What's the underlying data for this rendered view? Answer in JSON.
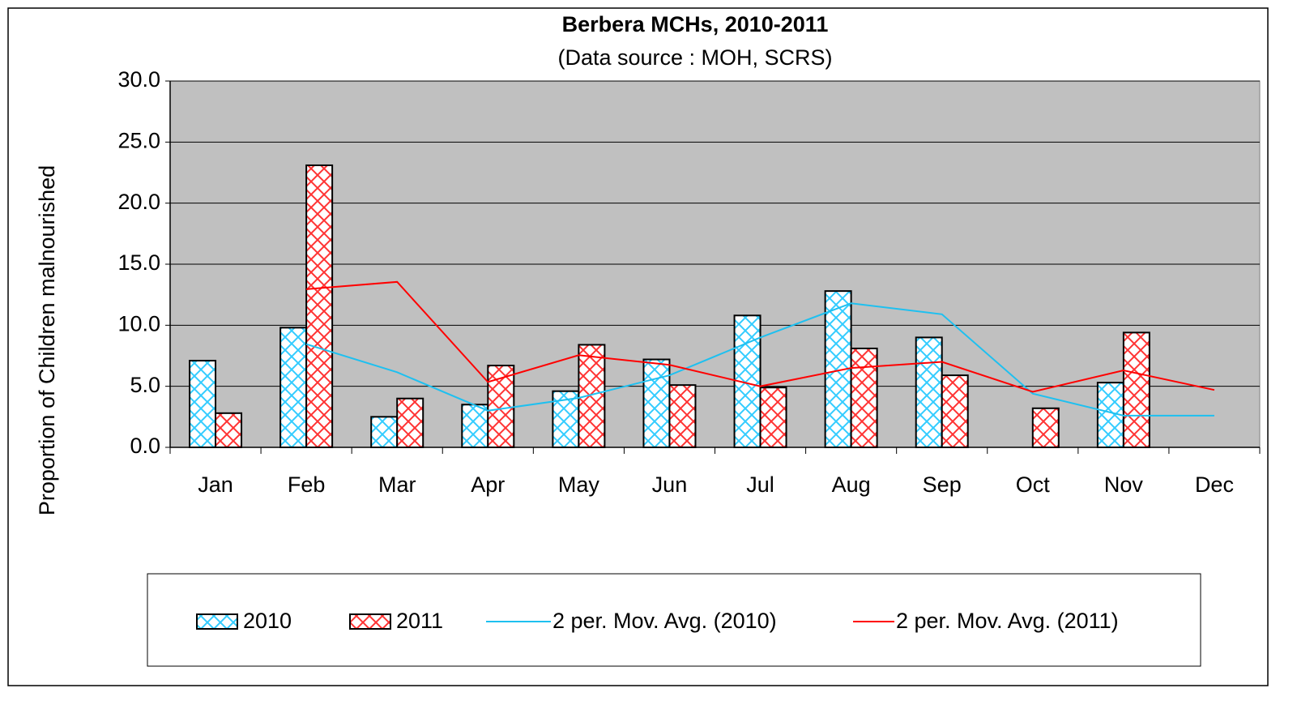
{
  "chart_data": {
    "type": "bar",
    "title": "Berbera MCHs, 2010-2011",
    "subtitle": "(Data source : MOH, SCRS)",
    "y_label": "Proportion of Children malnourished",
    "categories": [
      "Jan",
      "Feb",
      "Mar",
      "Apr",
      "May",
      "Jun",
      "Jul",
      "Aug",
      "Sep",
      "Oct",
      "Nov",
      "Dec"
    ],
    "series": [
      {
        "name": "2010",
        "type": "bar",
        "color": "#33ccff",
        "values": [
          7.1,
          9.8,
          2.5,
          3.5,
          4.6,
          7.2,
          10.8,
          12.8,
          9.0,
          null,
          5.3,
          null
        ]
      },
      {
        "name": "2011",
        "type": "bar",
        "color": "#ff3333",
        "values": [
          2.8,
          23.1,
          4.0,
          6.7,
          8.4,
          5.1,
          4.9,
          8.1,
          5.9,
          3.2,
          9.4,
          null
        ]
      },
      {
        "name": "2 per. Mov. Avg. (2010)",
        "type": "line",
        "color": "#1ec0f0",
        "values": [
          null,
          8.45,
          6.15,
          3.0,
          4.05,
          5.9,
          9.0,
          11.8,
          10.9,
          4.4,
          2.6,
          2.6
        ]
      },
      {
        "name": "2 per. Mov. Avg. (2011)",
        "type": "line",
        "color": "#ff0000",
        "values": [
          null,
          12.95,
          13.55,
          5.35,
          7.55,
          6.75,
          5.0,
          6.5,
          7.0,
          4.55,
          6.3,
          4.7
        ]
      }
    ],
    "ylim": [
      0,
      30
    ],
    "yticks": [
      {
        "value": 0,
        "label": "0.0"
      },
      {
        "value": 5,
        "label": "5.0"
      },
      {
        "value": 10,
        "label": "10.0"
      },
      {
        "value": 15,
        "label": "15.0"
      },
      {
        "value": 20,
        "label": "20.0"
      },
      {
        "value": 25,
        "label": "25.0"
      },
      {
        "value": 30,
        "label": "30.0"
      }
    ],
    "grid": true,
    "legend": "bottom"
  }
}
